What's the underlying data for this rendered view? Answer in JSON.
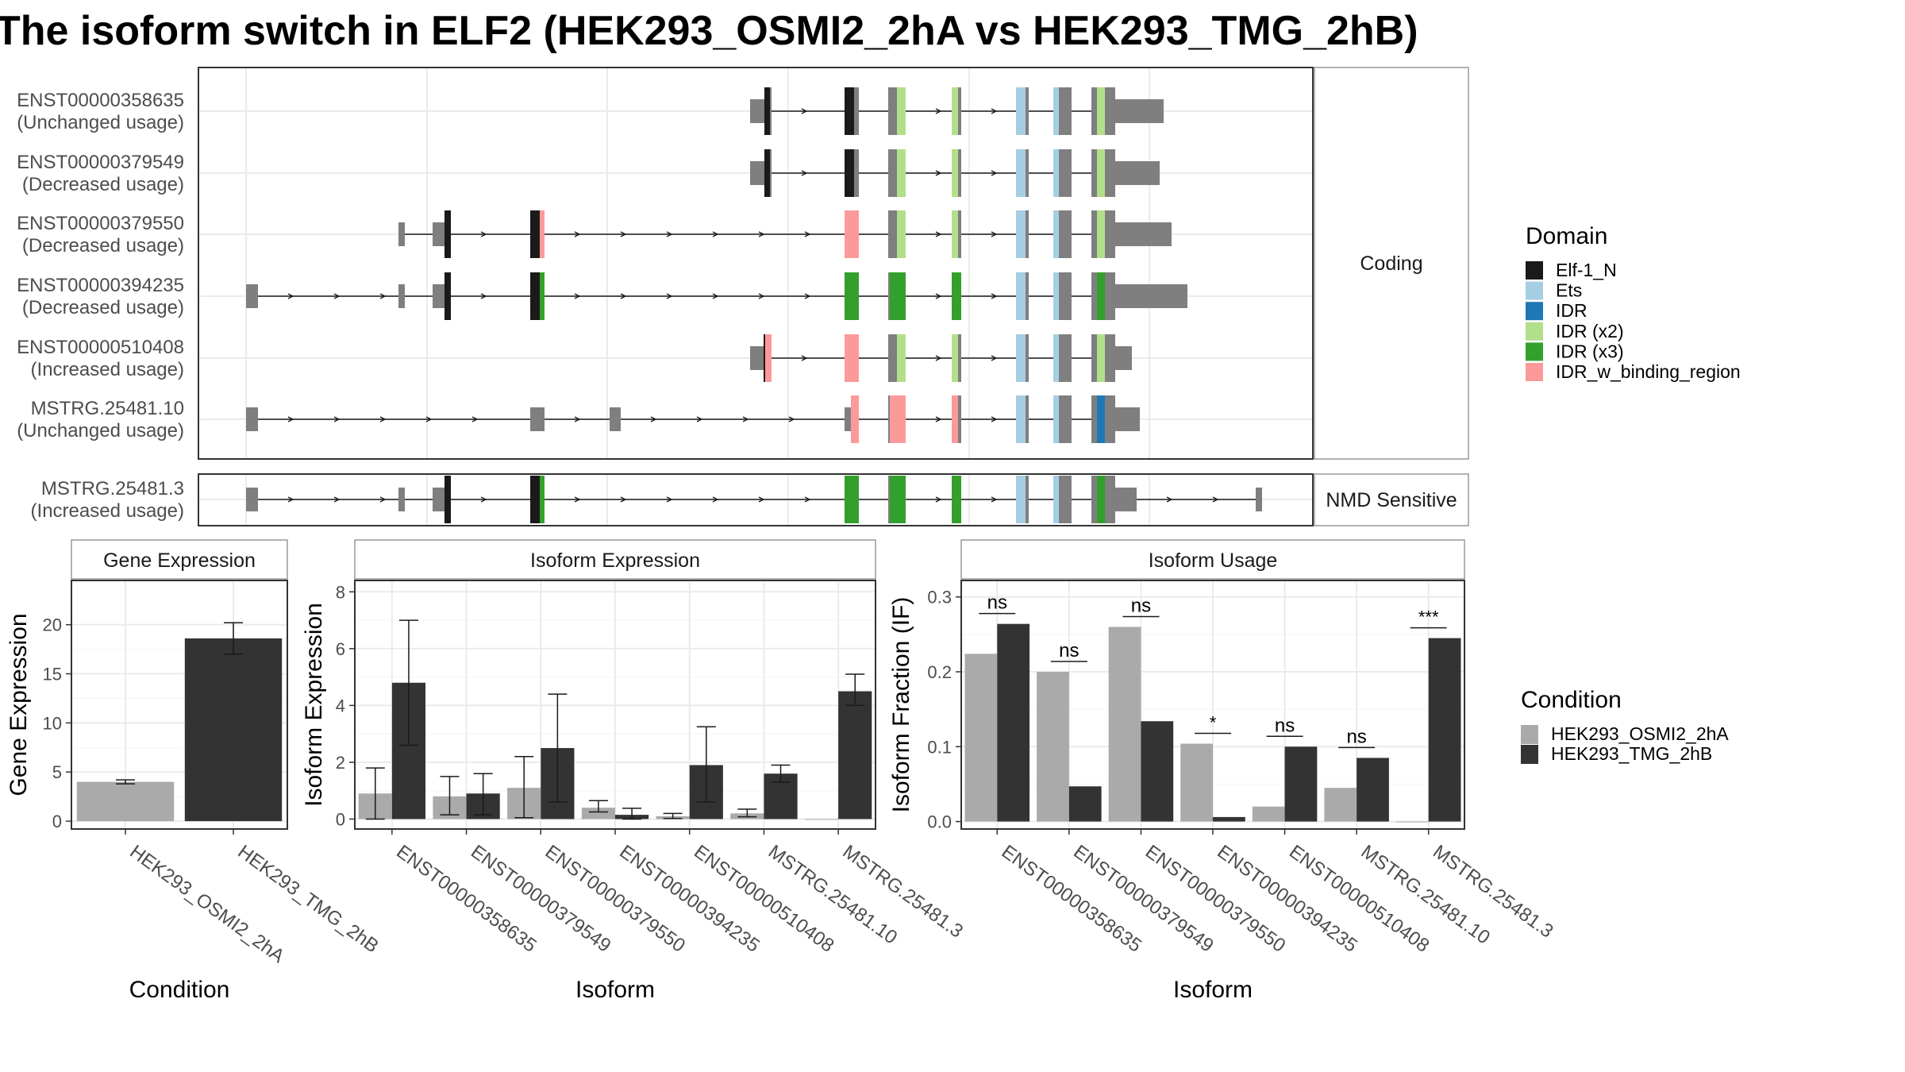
{
  "title": "The isoform switch in ELF2 (HEK293_OSMI2_2hA vs HEK293_TMG_2hB)",
  "colors": {
    "Elf-1_N": "#1a1a1a",
    "Ets": "#a6cee3",
    "IDR": "#1f78b4",
    "IDR (x2)": "#b2df8a",
    "IDR (x3)": "#33a02c",
    "IDR_w_binding_region": "#fb9a99",
    "exon": "#7f7f7f",
    "cond_a": "#aaaaaa",
    "cond_b": "#333333"
  },
  "structure": {
    "facets": [
      "Coding",
      "NMD Sensitive"
    ],
    "transcripts": [
      {
        "id": "ENST00000358635",
        "usage": "(Unchanged usage)",
        "facet": "Coding"
      },
      {
        "id": "ENST00000379549",
        "usage": "(Decreased usage)",
        "facet": "Coding"
      },
      {
        "id": "ENST00000379550",
        "usage": "(Decreased usage)",
        "facet": "Coding"
      },
      {
        "id": "ENST00000394235",
        "usage": "(Decreased usage)",
        "facet": "Coding"
      },
      {
        "id": "ENST00000510408",
        "usage": "(Increased usage)",
        "facet": "Coding"
      },
      {
        "id": "MSTRG.25481.10",
        "usage": "(Unchanged usage)",
        "facet": "Coding"
      },
      {
        "id": "MSTRG.25481.3",
        "usage": "(Increased usage)",
        "facet": "NMD Sensitive"
      }
    ],
    "domain_legend_title": "Domain",
    "domain_legend": [
      "Elf-1_N",
      "Ets",
      "IDR",
      "IDR (x2)",
      "IDR (x3)",
      "IDR_w_binding_region"
    ]
  },
  "chart_data": [
    {
      "type": "bar",
      "panel": "Gene Expression",
      "xlabel": "Condition",
      "ylabel": "Gene Expression",
      "ylim": [
        -0.8,
        24.5
      ],
      "yticks": [
        0,
        5,
        10,
        15,
        20
      ],
      "categories": [
        "HEK293_OSMI2_2hA",
        "HEK293_TMG_2hB"
      ],
      "values": [
        4.0,
        18.6
      ],
      "errors": [
        [
          3.8,
          4.2
        ],
        [
          17.0,
          20.2
        ]
      ]
    },
    {
      "type": "bar",
      "panel": "Isoform Expression",
      "xlabel": "Isoform",
      "ylabel": "Isoform Expression",
      "ylim": [
        -0.35,
        8.4
      ],
      "yticks": [
        0,
        2,
        4,
        6,
        8
      ],
      "categories": [
        "ENST00000358635",
        "ENST00000379549",
        "ENST00000379550",
        "ENST00000394235",
        "ENST00000510408",
        "MSTRG.25481.10",
        "MSTRG.25481.3"
      ],
      "series": [
        {
          "name": "HEK293_OSMI2_2hA",
          "values": [
            0.9,
            0.8,
            1.1,
            0.4,
            0.1,
            0.2,
            0.0
          ],
          "errors": [
            [
              0.0,
              1.8
            ],
            [
              0.15,
              1.5
            ],
            [
              0.05,
              2.2
            ],
            [
              0.25,
              0.65
            ],
            [
              0.02,
              0.2
            ],
            [
              0.08,
              0.35
            ],
            [
              0.0,
              0.0
            ]
          ]
        },
        {
          "name": "HEK293_TMG_2hB",
          "values": [
            4.8,
            0.9,
            2.5,
            0.15,
            1.9,
            1.6,
            4.5
          ],
          "errors": [
            [
              2.6,
              7.0
            ],
            [
              0.15,
              1.6
            ],
            [
              0.6,
              4.4
            ],
            [
              0.0,
              0.38
            ],
            [
              0.6,
              3.25
            ],
            [
              1.3,
              1.9
            ],
            [
              4.0,
              5.1
            ]
          ]
        }
      ]
    },
    {
      "type": "bar",
      "panel": "Isoform Usage",
      "xlabel": "Isoform",
      "ylabel": "Isoform Fraction (IF)",
      "ylim": [
        -0.01,
        0.322
      ],
      "yticks": [
        0.0,
        0.1,
        0.2,
        0.3
      ],
      "categories": [
        "ENST00000358635",
        "ENST00000379549",
        "ENST00000379550",
        "ENST00000394235",
        "ENST00000510408",
        "MSTRG.25481.10",
        "MSTRG.25481.3"
      ],
      "series": [
        {
          "name": "HEK293_OSMI2_2hA",
          "values": [
            0.224,
            0.2,
            0.26,
            0.104,
            0.02,
            0.045,
            0.0
          ]
        },
        {
          "name": "HEK293_TMG_2hB",
          "values": [
            0.264,
            0.047,
            0.134,
            0.006,
            0.1,
            0.085,
            0.245
          ]
        }
      ],
      "significance": [
        "ns",
        "ns",
        "ns",
        "*",
        "ns",
        "ns",
        "***"
      ]
    }
  ],
  "condition_legend": {
    "title": "Condition",
    "items": [
      "HEK293_OSMI2_2hA",
      "HEK293_TMG_2hB"
    ]
  }
}
